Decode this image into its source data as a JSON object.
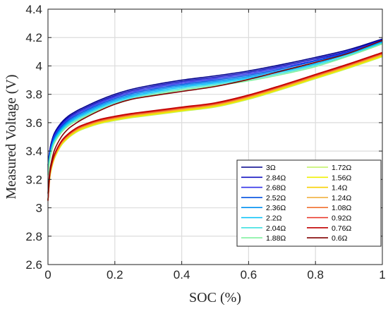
{
  "chart_data": {
    "type": "line",
    "title": "",
    "xlabel": "SOC (%)",
    "ylabel": "Measured Voltage (V)",
    "xlim": [
      0,
      1
    ],
    "ylim": [
      2.6,
      4.4
    ],
    "xticks": [
      0,
      0.2,
      0.4,
      0.6,
      0.8,
      1
    ],
    "xtick_labels": [
      "0",
      "0.2",
      "0.4",
      "0.6",
      "0.8",
      "1"
    ],
    "yticks": [
      2.6,
      2.8,
      3.0,
      3.2,
      3.4,
      3.6,
      3.8,
      4.0,
      4.2,
      4.4
    ],
    "ytick_labels": [
      "2.6",
      "2.8",
      "3",
      "3.2",
      "3.4",
      "3.6",
      "3.8",
      "4",
      "4.2",
      "4.4"
    ],
    "grid": true,
    "legend_position": "bottom-right",
    "x": [
      0,
      0.005,
      0.01,
      0.02,
      0.04,
      0.06,
      0.08,
      0.1,
      0.15,
      0.2,
      0.25,
      0.3,
      0.4,
      0.5,
      0.6,
      0.7,
      0.8,
      0.9,
      1.0
    ],
    "series": [
      {
        "name": "3Ω",
        "color": "#00008b",
        "values": [
          3.3,
          3.4,
          3.46,
          3.53,
          3.6,
          3.645,
          3.675,
          3.7,
          3.755,
          3.8,
          3.835,
          3.86,
          3.9,
          3.93,
          3.965,
          4.01,
          4.06,
          4.115,
          4.19
        ]
      },
      {
        "name": "2.84Ω",
        "color": "#1010c0",
        "values": [
          3.29,
          3.39,
          3.45,
          3.52,
          3.59,
          3.635,
          3.665,
          3.69,
          3.745,
          3.79,
          3.825,
          3.85,
          3.89,
          3.92,
          3.955,
          4.0,
          4.05,
          4.105,
          4.185
        ]
      },
      {
        "name": "2.68Ω",
        "color": "#3030e8",
        "values": [
          3.28,
          3.38,
          3.44,
          3.51,
          3.58,
          3.625,
          3.655,
          3.68,
          3.735,
          3.78,
          3.815,
          3.84,
          3.88,
          3.91,
          3.945,
          3.99,
          4.04,
          4.1,
          4.18
        ]
      },
      {
        "name": "2.52Ω",
        "color": "#0050e0",
        "values": [
          3.27,
          3.37,
          3.43,
          3.5,
          3.57,
          3.615,
          3.645,
          3.67,
          3.725,
          3.77,
          3.805,
          3.83,
          3.87,
          3.9,
          3.935,
          3.98,
          4.035,
          4.095,
          4.175
        ]
      },
      {
        "name": "2.36Ω",
        "color": "#0090f0",
        "values": [
          3.26,
          3.36,
          3.42,
          3.49,
          3.56,
          3.605,
          3.635,
          3.66,
          3.715,
          3.76,
          3.795,
          3.82,
          3.86,
          3.89,
          3.925,
          3.97,
          4.025,
          4.09,
          4.17
        ]
      },
      {
        "name": "2.2Ω",
        "color": "#00c0f8",
        "values": [
          3.25,
          3.35,
          3.41,
          3.48,
          3.55,
          3.595,
          3.625,
          3.65,
          3.705,
          3.75,
          3.785,
          3.81,
          3.85,
          3.88,
          3.915,
          3.96,
          4.015,
          4.085,
          4.165
        ]
      },
      {
        "name": "2.04Ω",
        "color": "#40e0e0",
        "values": [
          3.24,
          3.34,
          3.4,
          3.47,
          3.54,
          3.585,
          3.615,
          3.64,
          3.695,
          3.74,
          3.775,
          3.8,
          3.84,
          3.87,
          3.905,
          3.95,
          4.005,
          4.075,
          4.16
        ]
      },
      {
        "name": "1.88Ω",
        "color": "#80f0a0",
        "values": [
          3.23,
          3.33,
          3.39,
          3.46,
          3.53,
          3.575,
          3.605,
          3.63,
          3.685,
          3.73,
          3.765,
          3.79,
          3.83,
          3.86,
          3.895,
          3.94,
          3.995,
          4.07,
          4.155
        ]
      },
      {
        "name": "1.72Ω",
        "color": "#c0f060",
        "values": [
          3.05,
          3.2,
          3.27,
          3.35,
          3.44,
          3.49,
          3.525,
          3.55,
          3.59,
          3.615,
          3.635,
          3.65,
          3.68,
          3.71,
          3.765,
          3.835,
          3.91,
          3.985,
          4.065
        ]
      },
      {
        "name": "1.56Ω",
        "color": "#f0f000",
        "values": [
          3.05,
          3.205,
          3.275,
          3.355,
          3.445,
          3.495,
          3.53,
          3.555,
          3.595,
          3.62,
          3.64,
          3.655,
          3.685,
          3.715,
          3.77,
          3.84,
          3.915,
          3.99,
          4.07
        ]
      },
      {
        "name": "1.4Ω",
        "color": "#f8d000",
        "values": [
          3.05,
          3.21,
          3.28,
          3.36,
          3.45,
          3.5,
          3.535,
          3.56,
          3.6,
          3.625,
          3.645,
          3.66,
          3.69,
          3.72,
          3.775,
          3.845,
          3.92,
          3.995,
          4.075
        ]
      },
      {
        "name": "1.24Ω",
        "color": "#f0b040",
        "values": [
          3.05,
          3.215,
          3.285,
          3.365,
          3.455,
          3.505,
          3.54,
          3.565,
          3.605,
          3.63,
          3.65,
          3.665,
          3.695,
          3.725,
          3.78,
          3.85,
          3.925,
          4.0,
          4.08
        ]
      },
      {
        "name": "1.08Ω",
        "color": "#f07030",
        "values": [
          3.05,
          3.22,
          3.29,
          3.37,
          3.46,
          3.51,
          3.545,
          3.57,
          3.61,
          3.635,
          3.655,
          3.67,
          3.7,
          3.73,
          3.785,
          3.855,
          3.93,
          4.005,
          4.085
        ]
      },
      {
        "name": "0.92Ω",
        "color": "#e83020",
        "values": [
          3.05,
          3.225,
          3.295,
          3.375,
          3.465,
          3.515,
          3.55,
          3.575,
          3.615,
          3.64,
          3.66,
          3.675,
          3.705,
          3.735,
          3.79,
          3.86,
          3.935,
          4.01,
          4.09
        ]
      },
      {
        "name": "0.76Ω",
        "color": "#c00000",
        "values": [
          3.05,
          3.23,
          3.3,
          3.38,
          3.47,
          3.52,
          3.555,
          3.58,
          3.62,
          3.645,
          3.665,
          3.68,
          3.71,
          3.74,
          3.795,
          3.865,
          3.94,
          4.015,
          4.095
        ]
      },
      {
        "name": "0.6Ω",
        "color": "#800000",
        "values": [
          3.1,
          3.25,
          3.32,
          3.41,
          3.5,
          3.555,
          3.59,
          3.62,
          3.68,
          3.73,
          3.765,
          3.785,
          3.82,
          3.855,
          3.905,
          3.965,
          4.025,
          4.09,
          4.18
        ]
      }
    ]
  }
}
